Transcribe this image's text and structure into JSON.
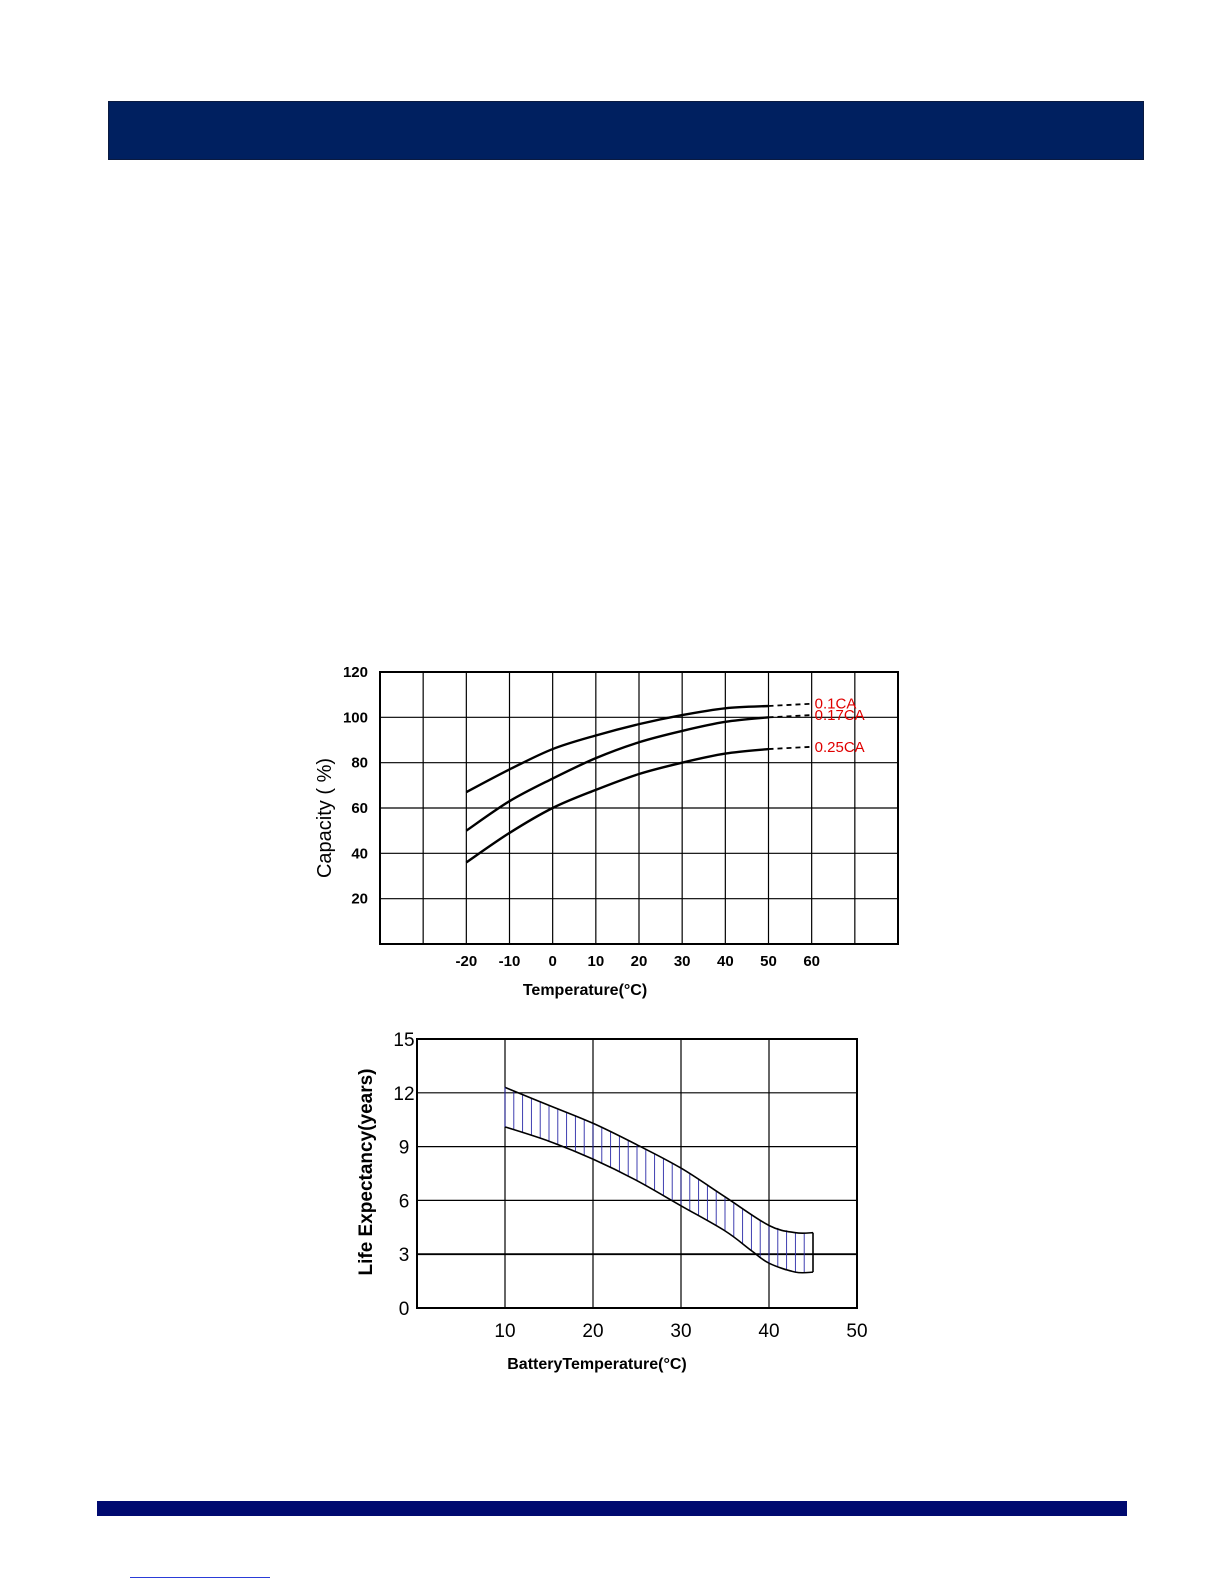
{
  "page": {
    "header_color": "#002060",
    "footer_color": "#000a70"
  },
  "chart_data": [
    {
      "type": "line",
      "title": "",
      "xlabel": "Temperature(°C)",
      "ylabel": "Capacity ( %)",
      "xlim": [
        -40,
        80
      ],
      "ylim": [
        0,
        120
      ],
      "x_ticks": [
        "-20",
        "-10",
        "0",
        "10",
        "20",
        "30",
        "40",
        "50",
        "60"
      ],
      "y_ticks": [
        "120",
        "100",
        "80",
        "60",
        "40",
        "20"
      ],
      "grid": true,
      "series": [
        {
          "name": "0.1CA",
          "color": "#e00000",
          "points": [
            [
              -20,
              67
            ],
            [
              -10,
              77
            ],
            [
              0,
              86
            ],
            [
              10,
              92
            ],
            [
              20,
              97
            ],
            [
              30,
              101
            ],
            [
              40,
              104
            ],
            [
              50,
              105
            ]
          ],
          "extension": [
            [
              50,
              105
            ],
            [
              60,
              106
            ]
          ]
        },
        {
          "name": "0.17CA",
          "color": "#e00000",
          "points": [
            [
              -20,
              50
            ],
            [
              -10,
              63
            ],
            [
              0,
              73
            ],
            [
              10,
              82
            ],
            [
              20,
              89
            ],
            [
              30,
              94
            ],
            [
              40,
              98
            ],
            [
              50,
              100
            ]
          ],
          "extension": [
            [
              50,
              100
            ],
            [
              60,
              101
            ]
          ]
        },
        {
          "name": "0.25CA",
          "color": "#e00000",
          "points": [
            [
              -20,
              36
            ],
            [
              -10,
              49
            ],
            [
              0,
              60
            ],
            [
              10,
              68
            ],
            [
              20,
              75
            ],
            [
              30,
              80
            ],
            [
              40,
              84
            ],
            [
              50,
              86
            ]
          ],
          "extension": [
            [
              50,
              86
            ],
            [
              60,
              87
            ]
          ]
        }
      ]
    },
    {
      "type": "area",
      "title": "",
      "xlabel": "BatteryTemperature(°C)",
      "ylabel": "Life Expectancy(years)",
      "xlim": [
        0,
        50
      ],
      "ylim": [
        0,
        15
      ],
      "x_ticks": [
        "10",
        "20",
        "30",
        "40",
        "50"
      ],
      "y_ticks": [
        "15",
        "12",
        "9",
        "6",
        "3",
        "0"
      ],
      "grid": true,
      "band_color": "#2a2aa8",
      "series": [
        {
          "name": "upper",
          "points": [
            [
              10,
              12.3
            ],
            [
              15,
              11.3
            ],
            [
              20,
              10.3
            ],
            [
              25,
              9.1
            ],
            [
              30,
              7.8
            ],
            [
              35,
              6.2
            ],
            [
              40,
              4.6
            ],
            [
              43,
              4.2
            ],
            [
              45,
              4.2
            ]
          ]
        },
        {
          "name": "lower",
          "points": [
            [
              10,
              10.1
            ],
            [
              15,
              9.3
            ],
            [
              20,
              8.3
            ],
            [
              25,
              7.1
            ],
            [
              30,
              5.7
            ],
            [
              35,
              4.3
            ],
            [
              38,
              3.2
            ],
            [
              40,
              2.5
            ],
            [
              43,
              2.0
            ],
            [
              45,
              2.0
            ]
          ]
        }
      ]
    }
  ]
}
